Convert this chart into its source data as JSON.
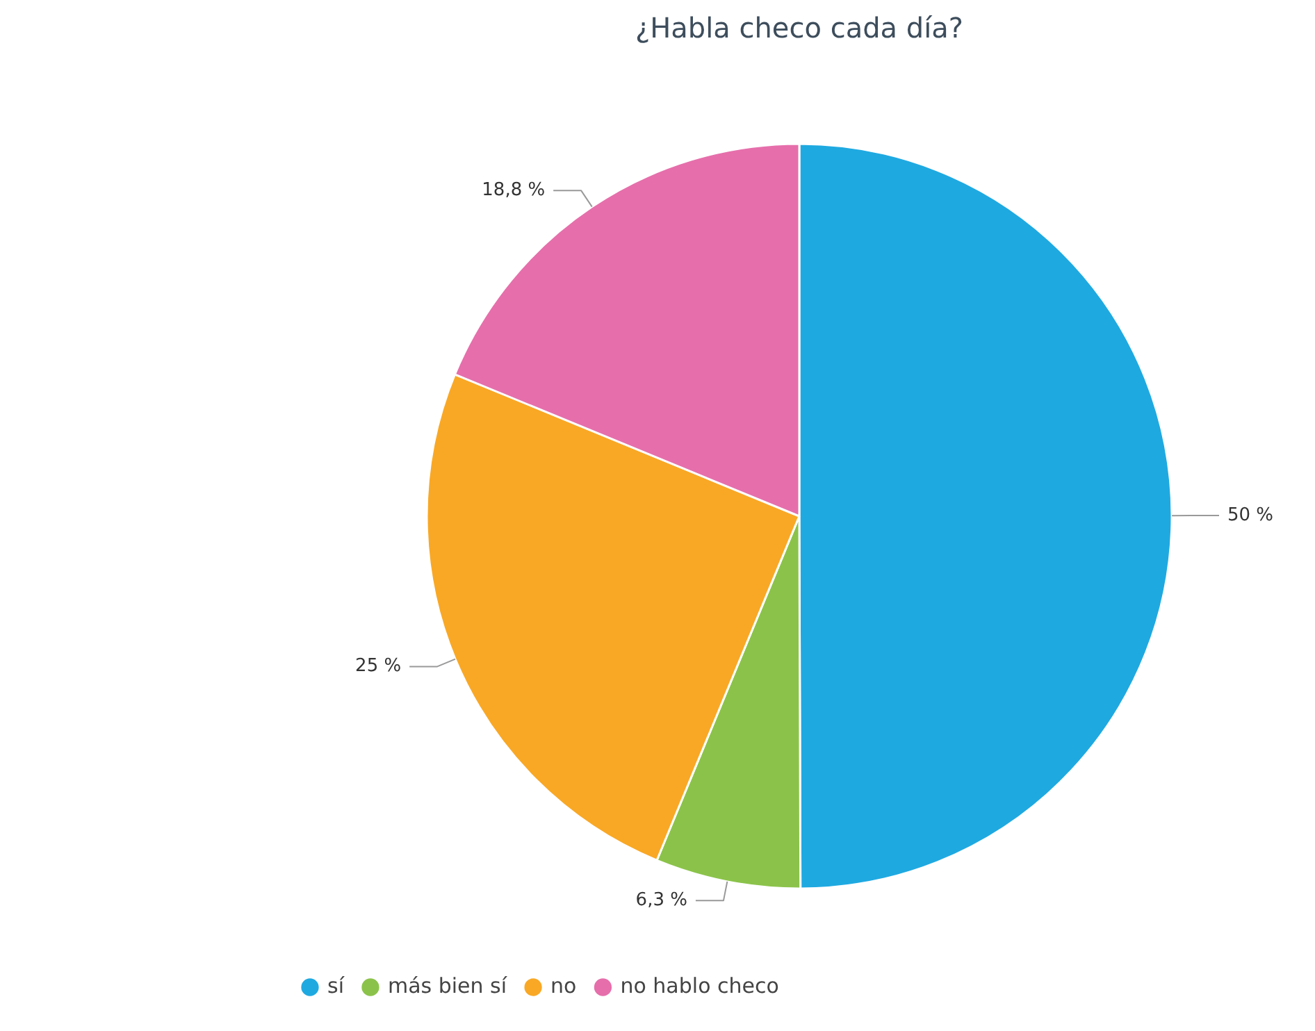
{
  "chart_data": {
    "type": "pie",
    "title": "¿Habla checo cada día?",
    "categories": [
      "sí",
      "más bien sí",
      "no",
      "no hablo checo"
    ],
    "values": [
      50,
      6.3,
      25,
      18.8
    ],
    "value_labels": [
      "50 %",
      "6,3 %",
      "25 %",
      "18,8 %"
    ],
    "colors": [
      "#1fa9e1",
      "#8bc34a",
      "#f9a825",
      "#e66eab"
    ],
    "legend": "bottom left"
  }
}
